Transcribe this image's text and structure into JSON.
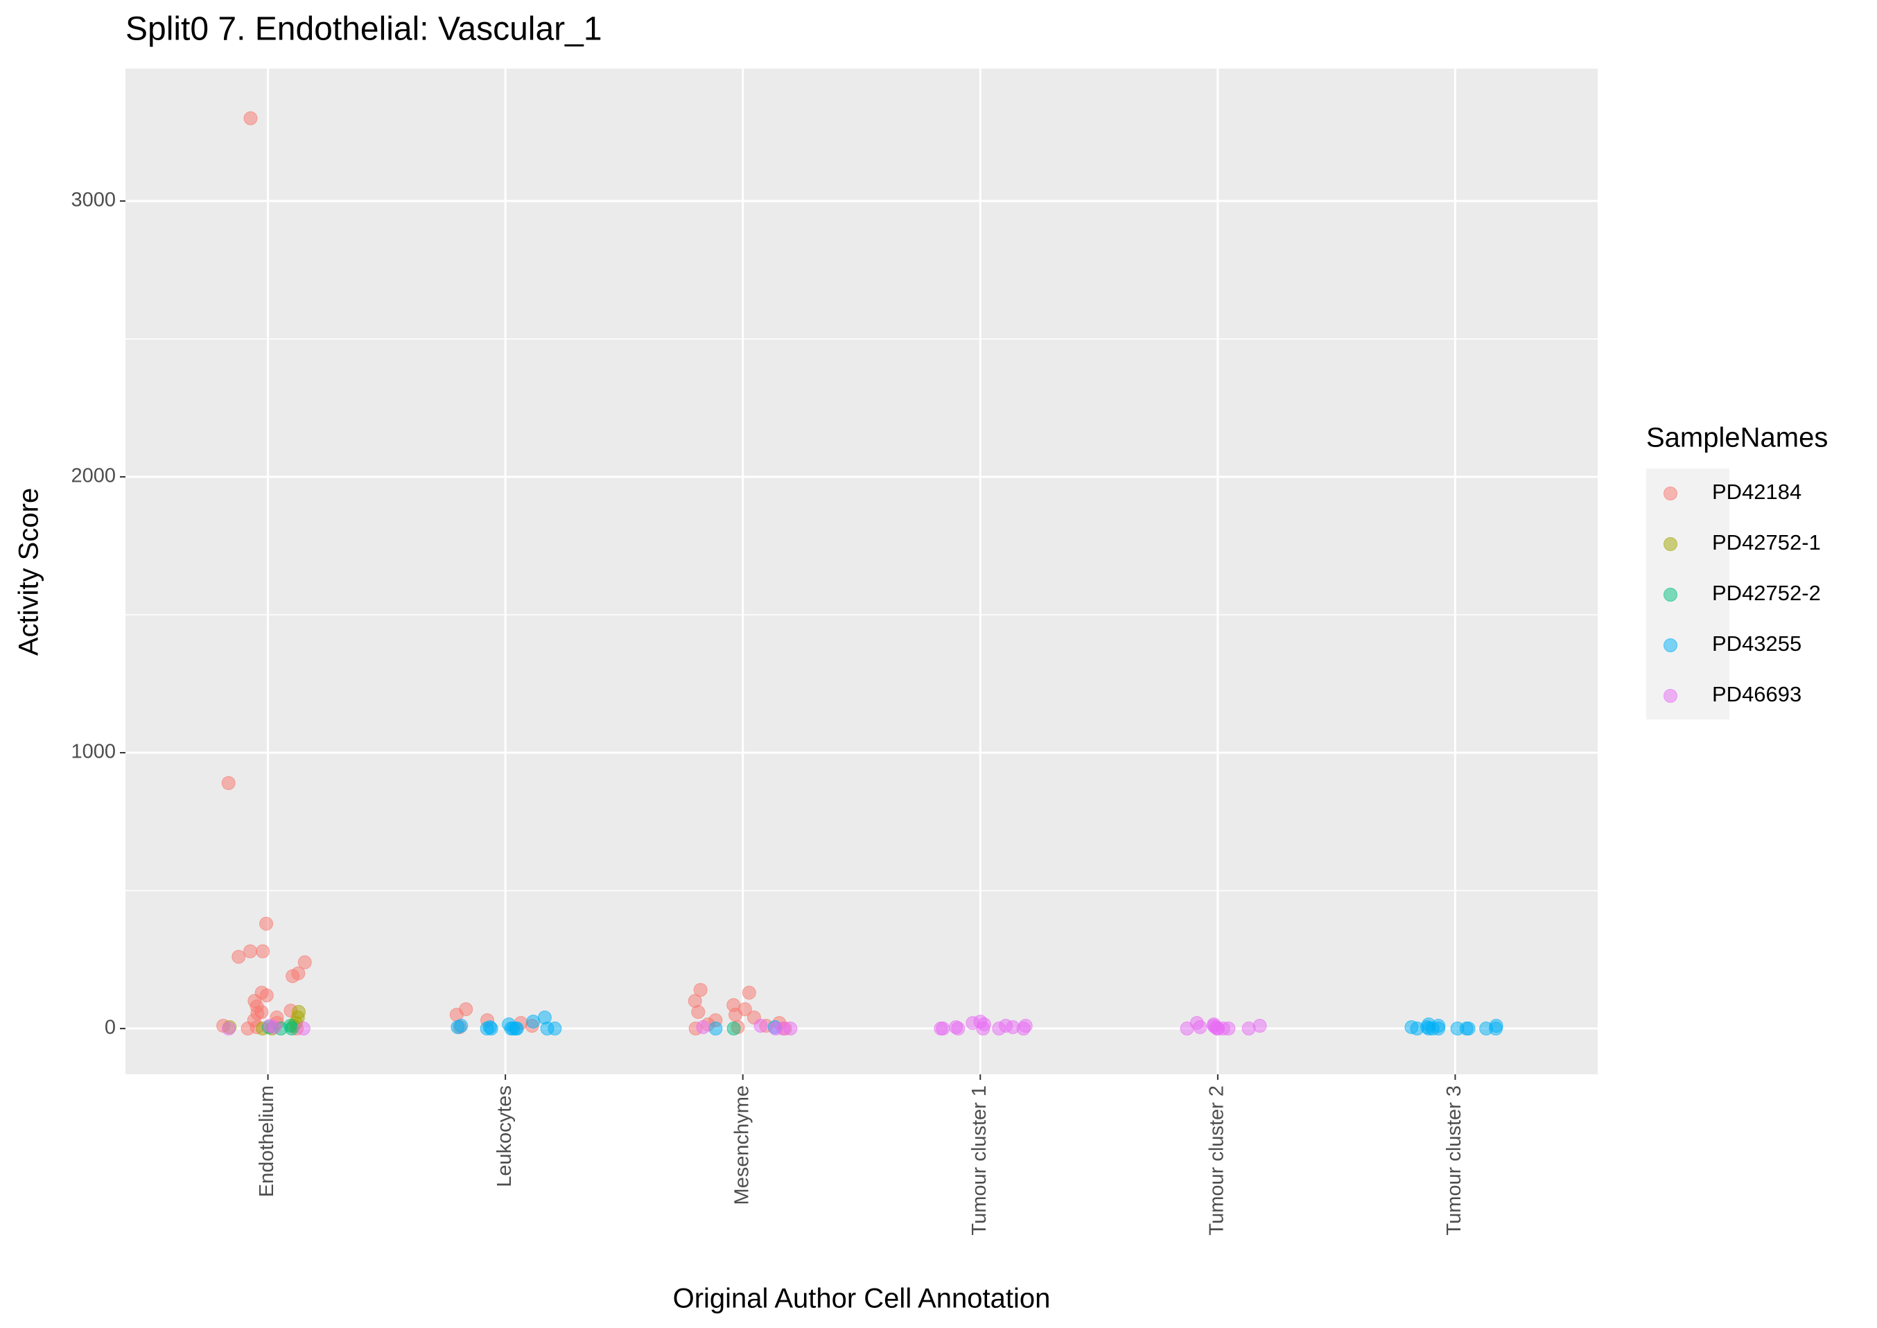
{
  "chart_data": {
    "type": "strip",
    "title": "Split0 7. Endothelial: Vascular_1",
    "x_label": "Original Author Cell Annotation",
    "y_label": "Activity Score",
    "legend_title": "SampleNames",
    "legend_position": "right",
    "grid": true,
    "categories": [
      "Endothelium",
      "Leukocytes",
      "Mesenchyme",
      "Tumour cluster 1",
      "Tumour cluster 2",
      "Tumour cluster 3"
    ],
    "ylim": [
      -166,
      3480
    ],
    "yticks": [
      0,
      1000,
      2000,
      3000
    ],
    "series": [
      {
        "name": "PD42184",
        "color": "#F8766D",
        "x": [
          "Endothelium",
          "Endothelium",
          "Endothelium",
          "Endothelium",
          "Endothelium",
          "Endothelium",
          "Endothelium",
          "Endothelium",
          "Endothelium",
          "Endothelium",
          "Endothelium",
          "Endothelium",
          "Endothelium",
          "Endothelium",
          "Endothelium",
          "Endothelium",
          "Endothelium",
          "Endothelium",
          "Endothelium",
          "Endothelium",
          "Endothelium",
          "Endothelium",
          "Endothelium",
          "Leukocytes",
          "Leukocytes",
          "Leukocytes",
          "Leukocytes",
          "Leukocytes",
          "Leukocytes",
          "Mesenchyme",
          "Mesenchyme",
          "Mesenchyme",
          "Mesenchyme",
          "Mesenchyme",
          "Mesenchyme",
          "Mesenchyme",
          "Mesenchyme",
          "Mesenchyme",
          "Mesenchyme",
          "Mesenchyme",
          "Mesenchyme",
          "Mesenchyme",
          "Mesenchyme",
          "Mesenchyme"
        ],
        "values": [
          3300,
          890,
          380,
          280,
          280,
          260,
          240,
          200,
          190,
          130,
          120,
          100,
          80,
          65,
          60,
          55,
          40,
          30,
          20,
          10,
          5,
          0,
          0,
          70,
          50,
          30,
          20,
          10,
          5,
          140,
          130,
          100,
          85,
          70,
          60,
          50,
          40,
          30,
          20,
          15,
          10,
          5,
          0,
          0
        ]
      },
      {
        "name": "PD42752-1",
        "color": "#A3A500",
        "x": [
          "Endothelium",
          "Endothelium",
          "Endothelium",
          "Endothelium",
          "Endothelium",
          "Endothelium",
          "Endothelium"
        ],
        "values": [
          60,
          40,
          20,
          10,
          5,
          0,
          0
        ]
      },
      {
        "name": "PD42752-2",
        "color": "#00BF7D",
        "x": [
          "Endothelium",
          "Endothelium",
          "Endothelium",
          "Endothelium",
          "Mesenchyme"
        ],
        "values": [
          10,
          0,
          0,
          5,
          0
        ]
      },
      {
        "name": "PD43255",
        "color": "#00B0F6",
        "x": [
          "Leukocytes",
          "Leukocytes",
          "Leukocytes",
          "Leukocytes",
          "Leukocytes",
          "Leukocytes",
          "Leukocytes",
          "Leukocytes",
          "Leukocytes",
          "Leukocytes",
          "Leukocytes",
          "Leukocytes",
          "Leukocytes",
          "Leukocytes",
          "Mesenchyme",
          "Mesenchyme",
          "Tumour cluster 3",
          "Tumour cluster 3",
          "Tumour cluster 3",
          "Tumour cluster 3",
          "Tumour cluster 3",
          "Tumour cluster 3",
          "Tumour cluster 3",
          "Tumour cluster 3",
          "Tumour cluster 3",
          "Tumour cluster 3",
          "Tumour cluster 3",
          "Tumour cluster 3",
          "Tumour cluster 3",
          "Tumour cluster 3"
        ],
        "values": [
          40,
          25,
          15,
          10,
          5,
          5,
          0,
          0,
          0,
          0,
          0,
          0,
          0,
          0,
          5,
          0,
          15,
          10,
          10,
          5,
          5,
          0,
          0,
          0,
          0,
          0,
          0,
          0,
          0,
          0
        ]
      },
      {
        "name": "PD46693",
        "color": "#E76BF3",
        "x": [
          "Endothelium",
          "Endothelium",
          "Endothelium",
          "Endothelium",
          "Mesenchyme",
          "Mesenchyme",
          "Mesenchyme",
          "Mesenchyme",
          "Mesenchyme",
          "Tumour cluster 1",
          "Tumour cluster 1",
          "Tumour cluster 1",
          "Tumour cluster 1",
          "Tumour cluster 1",
          "Tumour cluster 1",
          "Tumour cluster 1",
          "Tumour cluster 1",
          "Tumour cluster 1",
          "Tumour cluster 1",
          "Tumour cluster 1",
          "Tumour cluster 1",
          "Tumour cluster 1",
          "Tumour cluster 2",
          "Tumour cluster 2",
          "Tumour cluster 2",
          "Tumour cluster 2",
          "Tumour cluster 2",
          "Tumour cluster 2",
          "Tumour cluster 2",
          "Tumour cluster 2",
          "Tumour cluster 2",
          "Tumour cluster 2",
          "Tumour cluster 2",
          "Tumour cluster 2"
        ],
        "values": [
          10,
          5,
          0,
          0,
          10,
          5,
          0,
          0,
          0,
          25,
          20,
          15,
          10,
          10,
          5,
          5,
          0,
          0,
          0,
          0,
          0,
          0,
          20,
          15,
          10,
          10,
          5,
          5,
          0,
          0,
          0,
          0,
          0,
          0
        ]
      }
    ]
  }
}
